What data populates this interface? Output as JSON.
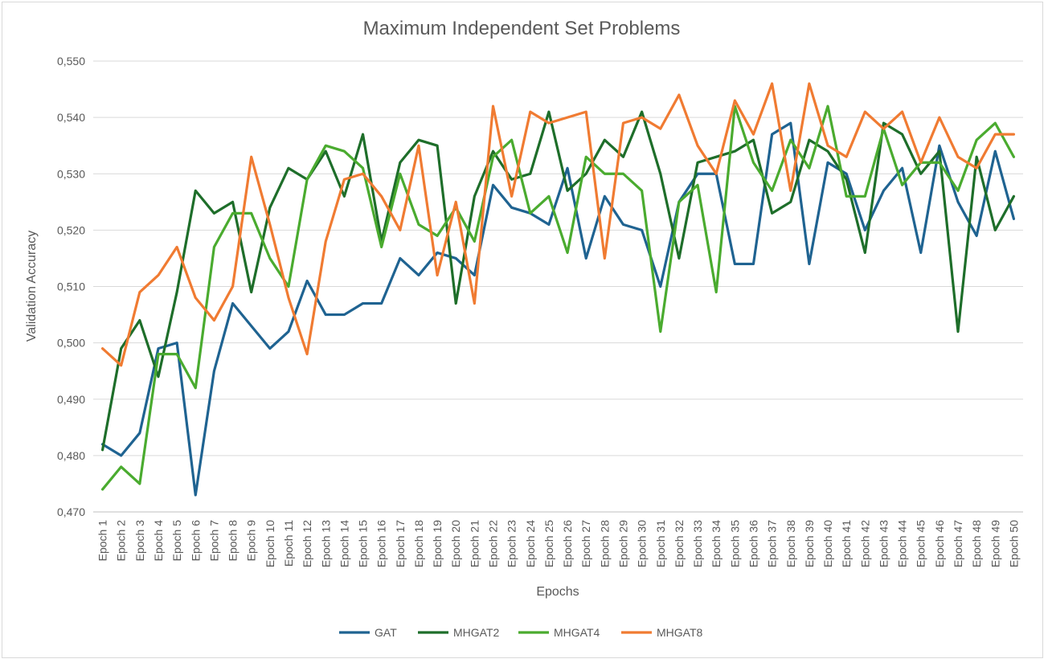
{
  "chart_data": {
    "type": "line",
    "title": "Maximum Independent Set Problems",
    "xlabel": "Epochs",
    "ylabel": "Validation Accuracy",
    "ylim": [
      0.47,
      0.55
    ],
    "ytick_values": [
      0.47,
      0.48,
      0.49,
      0.5,
      0.51,
      0.52,
      0.53,
      0.54,
      0.55
    ],
    "ytick_labels": [
      "0,470",
      "0,480",
      "0,490",
      "0,500",
      "0,510",
      "0,520",
      "0,530",
      "0,540",
      "0,550"
    ],
    "grid": true,
    "legend_position": "bottom",
    "categories": [
      "Epoch 1",
      "Epoch 2",
      "Epoch 3",
      "Epoch 4",
      "Epoch 5",
      "Epoch 6",
      "Epoch 7",
      "Epoch 8",
      "Epoch 9",
      "Epoch 10",
      "Epoch 11",
      "Epoch 12",
      "Epoch 13",
      "Epoch 14",
      "Epoch 15",
      "Epoch 16",
      "Epoch 17",
      "Epoch 18",
      "Epoch 19",
      "Epoch 20",
      "Epoch 21",
      "Epoch 22",
      "Epoch 23",
      "Epoch 24",
      "Epoch 25",
      "Epoch 26",
      "Epoch 27",
      "Epoch 28",
      "Epoch 29",
      "Epoch 30",
      "Epoch 31",
      "Epoch 32",
      "Epoch 33",
      "Epoch 34",
      "Epoch 35",
      "Epoch 36",
      "Epoch 37",
      "Epoch 38",
      "Epoch 39",
      "Epoch 40",
      "Epoch 41",
      "Epoch 42",
      "Epoch 43",
      "Epoch 44",
      "Epoch 45",
      "Epoch 46",
      "Epoch 47",
      "Epoch 48",
      "Epoch 49",
      "Epoch 50"
    ],
    "series": [
      {
        "name": "GAT",
        "color": "#1f6391",
        "values": [
          0.482,
          0.48,
          0.484,
          0.499,
          0.5,
          0.473,
          0.495,
          0.507,
          0.503,
          0.499,
          0.502,
          0.511,
          0.505,
          0.505,
          0.507,
          0.507,
          0.515,
          0.512,
          0.516,
          0.515,
          0.512,
          0.528,
          0.524,
          0.523,
          0.521,
          0.531,
          0.515,
          0.526,
          0.521,
          0.52,
          0.51,
          0.525,
          0.53,
          0.53,
          0.514,
          0.514,
          0.537,
          0.539,
          0.514,
          0.532,
          0.53,
          0.52,
          0.527,
          0.531,
          0.516,
          0.535,
          0.525,
          0.519,
          0.534,
          0.522
        ]
      },
      {
        "name": "MHGAT2",
        "color": "#1e6e2a",
        "values": [
          0.481,
          0.499,
          0.504,
          0.494,
          0.509,
          0.527,
          0.523,
          0.525,
          0.509,
          0.524,
          0.531,
          0.529,
          0.534,
          0.526,
          0.537,
          0.518,
          0.532,
          0.536,
          0.535,
          0.507,
          0.526,
          0.534,
          0.529,
          0.53,
          0.541,
          0.527,
          0.53,
          0.536,
          0.533,
          0.541,
          0.53,
          0.515,
          0.532,
          0.533,
          0.534,
          0.536,
          0.523,
          0.525,
          0.536,
          0.534,
          0.529,
          0.516,
          0.539,
          0.537,
          0.53,
          0.534,
          0.502,
          0.533,
          0.52,
          0.526
        ]
      },
      {
        "name": "MHGAT4",
        "color": "#4aab2f",
        "values": [
          0.474,
          0.478,
          0.475,
          0.498,
          0.498,
          0.492,
          0.517,
          0.523,
          0.523,
          0.515,
          0.51,
          0.529,
          0.535,
          0.534,
          0.531,
          0.517,
          0.53,
          0.521,
          0.519,
          0.524,
          0.518,
          0.533,
          0.536,
          0.523,
          0.526,
          0.516,
          0.533,
          0.53,
          0.53,
          0.527,
          0.502,
          0.525,
          0.528,
          0.509,
          0.542,
          0.532,
          0.527,
          0.536,
          0.531,
          0.542,
          0.526,
          0.526,
          0.538,
          0.528,
          0.532,
          0.532,
          0.527,
          0.536,
          0.539,
          0.533
        ]
      },
      {
        "name": "MHGAT8",
        "color": "#f07b32",
        "values": [
          0.499,
          0.496,
          0.509,
          0.512,
          0.517,
          0.508,
          0.504,
          0.51,
          0.533,
          0.521,
          0.508,
          0.498,
          0.518,
          0.529,
          0.53,
          0.526,
          0.52,
          0.535,
          0.512,
          0.525,
          0.507,
          0.542,
          0.526,
          0.541,
          0.539,
          0.54,
          0.541,
          0.515,
          0.539,
          0.54,
          0.538,
          0.544,
          0.535,
          0.53,
          0.543,
          0.537,
          0.546,
          0.527,
          0.546,
          0.535,
          0.533,
          0.541,
          0.538,
          0.541,
          0.532,
          0.54,
          0.533,
          0.531,
          0.537,
          0.537
        ]
      }
    ]
  }
}
